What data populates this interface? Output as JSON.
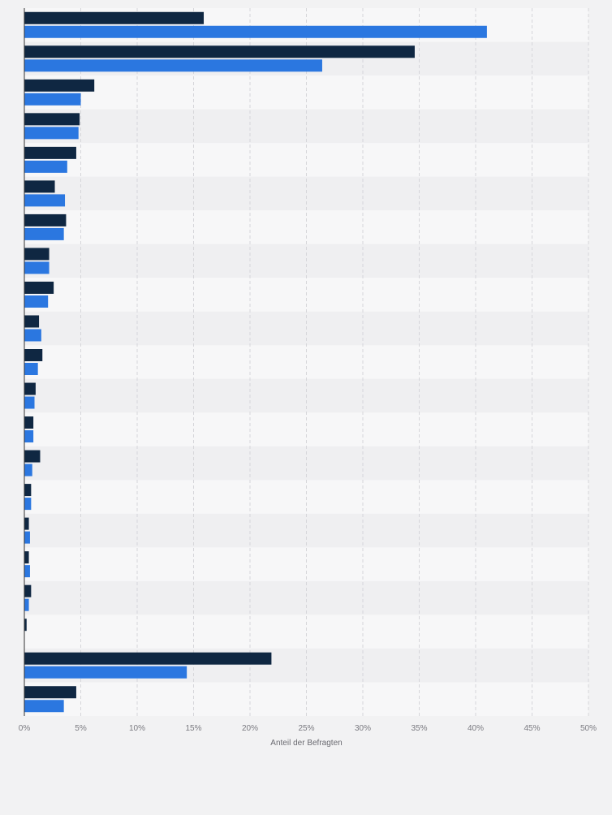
{
  "chart_data": {
    "type": "bar",
    "orientation": "horizontal",
    "categories": [
      "",
      "",
      "",
      "",
      "",
      "",
      "",
      "",
      "",
      "",
      "",
      "",
      "",
      "",
      "",
      "",
      "",
      "",
      "",
      "",
      ""
    ],
    "series": [
      {
        "values": [
          15.9,
          34.6,
          6.2,
          4.9,
          4.6,
          2.7,
          3.7,
          2.2,
          2.6,
          1.3,
          1.6,
          1.0,
          0.8,
          1.4,
          0.6,
          0.4,
          0.4,
          0.6,
          0.2,
          21.9,
          4.6
        ],
        "color": "#0f2742"
      },
      {
        "values": [
          41.0,
          26.4,
          5.0,
          4.8,
          3.8,
          3.6,
          3.5,
          2.2,
          2.1,
          1.5,
          1.2,
          0.9,
          0.8,
          0.7,
          0.6,
          0.5,
          0.5,
          0.4,
          null,
          14.4,
          3.5
        ],
        "color": "#2b77e0"
      }
    ],
    "xlim": [
      0,
      50
    ],
    "xticks": [
      "0%",
      "5%",
      "10%",
      "15%",
      "20%",
      "25%",
      "30%",
      "35%",
      "40%",
      "45%",
      "50%"
    ],
    "xlabel": "Anteil der Befragten",
    "ylabel": "",
    "grid": true,
    "legend": "none"
  }
}
